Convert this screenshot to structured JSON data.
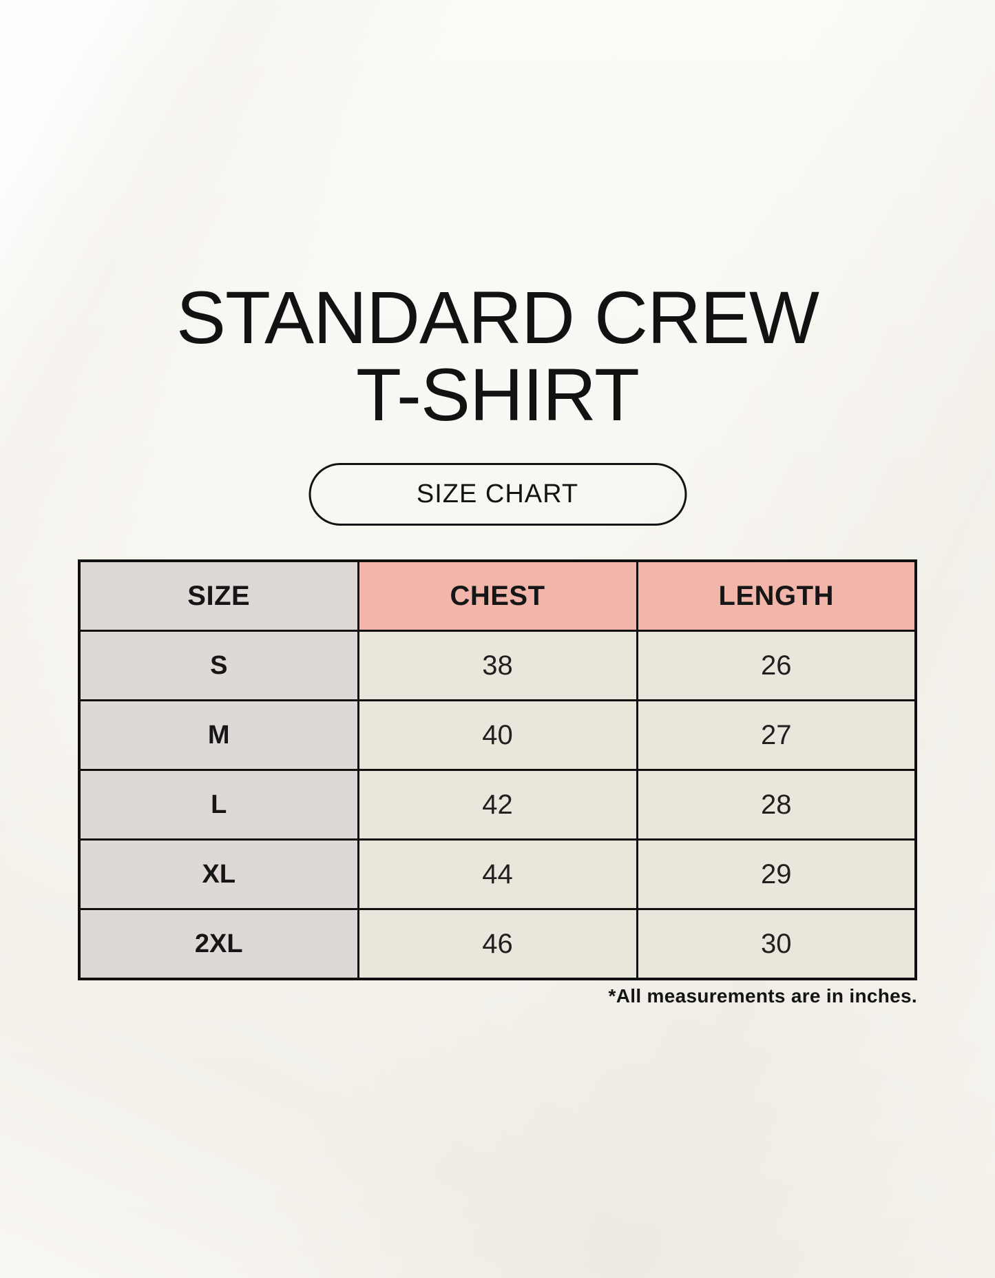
{
  "title": {
    "line1": "STANDARD CREW",
    "line2": "T-SHIRT"
  },
  "badge": {
    "label": "SIZE CHART"
  },
  "footnote": "*All measurements are in inches.",
  "colors": {
    "background": "#f8f6f1",
    "header_pink": "#f1b5aa",
    "size_column_gray": "#ded8d6",
    "data_cell_cream": "#ebe6dc",
    "border_black": "#101010",
    "text": "#151515"
  },
  "chart_data": {
    "type": "table",
    "title": "STANDARD CREW T-SHIRT",
    "subtitle": "SIZE CHART",
    "units": "inches",
    "columns": [
      "SIZE",
      "CHEST",
      "LENGTH"
    ],
    "rows": [
      {
        "size": "S",
        "chest": 38,
        "length": 26
      },
      {
        "size": "M",
        "chest": 40,
        "length": 27
      },
      {
        "size": "L",
        "chest": 42,
        "length": 28
      },
      {
        "size": "XL",
        "chest": 44,
        "length": 29
      },
      {
        "size": "2XL",
        "chest": 46,
        "length": 30
      }
    ],
    "note": "*All measurements are in inches.",
    "layout": {
      "grid": true,
      "header_row": true,
      "equal_columns": 3
    }
  }
}
